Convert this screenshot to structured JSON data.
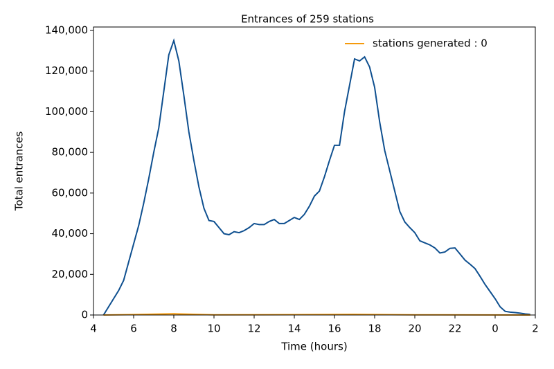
{
  "chart_data": {
    "type": "line",
    "title": "Entrances of 259 stations",
    "x_label": "Time (hours)",
    "y_label": "Total entrances",
    "xlim": [
      4,
      26
    ],
    "xticks": [
      4,
      6,
      8,
      10,
      12,
      14,
      16,
      18,
      20,
      22,
      {
        "value": 24,
        "label": "0"
      },
      {
        "value": 26,
        "label": "2"
      }
    ],
    "ylim": [
      0,
      141700
    ],
    "yticks": [
      {
        "value": 0,
        "label": "0"
      },
      {
        "value": 20000,
        "label": "20,000"
      },
      {
        "value": 40000,
        "label": "40,000"
      },
      {
        "value": 60000,
        "label": "60,000"
      },
      {
        "value": 80000,
        "label": "80,000"
      },
      {
        "value": 100000,
        "label": "100,000"
      },
      {
        "value": 120000,
        "label": "120,000"
      },
      {
        "value": 140000,
        "label": "140,000"
      }
    ],
    "legend": "upper right",
    "series": [
      {
        "color": "#0e4f8f",
        "x": [
          4.5,
          4.75,
          5,
          5.25,
          5.5,
          5.75,
          6,
          6.25,
          6.5,
          6.75,
          7,
          7.25,
          7.5,
          7.75,
          8,
          8.25,
          8.5,
          8.75,
          9,
          9.25,
          9.5,
          9.75,
          10,
          10.25,
          10.5,
          10.75,
          11,
          11.25,
          11.5,
          11.75,
          12,
          12.25,
          12.5,
          12.75,
          13,
          13.25,
          13.5,
          13.75,
          14,
          14.25,
          14.5,
          14.75,
          15,
          15.25,
          15.5,
          15.75,
          16,
          16.25,
          16.5,
          16.75,
          17,
          17.25,
          17.5,
          17.75,
          18,
          18.25,
          18.5,
          18.75,
          19,
          19.25,
          19.5,
          19.75,
          20,
          20.25,
          20.5,
          20.75,
          21,
          21.25,
          21.5,
          21.75,
          22,
          22.25,
          22.5,
          22.75,
          23,
          23.25,
          23.5,
          23.75,
          24,
          24.25,
          24.5,
          24.75,
          25,
          25.25,
          25.5,
          25.75
        ],
        "values": [
          0,
          4000,
          8000,
          12000,
          17000,
          26000,
          35000,
          44000,
          55000,
          67000,
          80000,
          92000,
          110000,
          128000,
          135000,
          125000,
          108000,
          90000,
          76000,
          63000,
          52500,
          46500,
          46000,
          43000,
          40000,
          39500,
          41000,
          40500,
          41500,
          43000,
          45000,
          44500,
          44500,
          46000,
          47000,
          45000,
          45000,
          46500,
          48000,
          47000,
          49500,
          53500,
          58500,
          61000,
          68000,
          76000,
          83500,
          83500,
          100000,
          113000,
          126000,
          125000,
          127000,
          122000,
          112000,
          95000,
          81000,
          71000,
          61000,
          51000,
          45800,
          43000,
          40500,
          36500,
          35500,
          34500,
          33000,
          30500,
          31000,
          32800,
          33000,
          30000,
          27000,
          25000,
          22800,
          19000,
          15000,
          11500,
          8000,
          4000,
          1800,
          1400,
          1200,
          900,
          500,
          300
        ]
      },
      {
        "name": "stations generated : 0",
        "color": "#f59a0c",
        "x": [
          4.5,
          6,
          8,
          10,
          14,
          17,
          20,
          25.75
        ],
        "values": [
          0,
          200,
          600,
          100,
          150,
          300,
          100,
          0
        ]
      }
    ]
  }
}
